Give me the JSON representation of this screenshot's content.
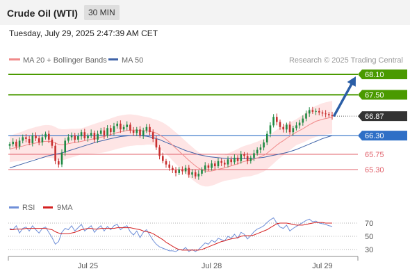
{
  "header": {
    "title": "Crude Oil (WTI)",
    "timeframe": "30 MIN",
    "datetime": "Tuesday, July 29, 2025 2:47:39 AM CET"
  },
  "legend": {
    "ma20": "MA 20 + Bollinger Bands",
    "ma50": "MA 50",
    "credit": "Research © 2025 Trading Central",
    "rsi": "RSI",
    "rsi_ma": "9MA"
  },
  "colors": {
    "resistance": "#4a9a00",
    "support": "#e0606a",
    "pivot": "#2f6fc6",
    "current": "#333333",
    "ma20": "#f08a8a",
    "ma50": "#3f63a8",
    "band": "#fddcdc",
    "bull": "#1f8a44",
    "bear": "#c83030",
    "arrow": "#2b5ea6",
    "rsi": "#6f8fd8",
    "rsi_ma": "#d42020"
  },
  "chart_data": [
    {
      "type": "line",
      "title": "Crude Oil (WTI)",
      "timeframe": "30 MIN",
      "ylim": [
        64.55,
        68.65
      ],
      "x_ticks": [
        "Jul 25",
        "Jul 28",
        "Jul 29"
      ],
      "levels": [
        {
          "name": "resistance-2",
          "value": 68.1,
          "label": "68.10",
          "kind": "resistance"
        },
        {
          "name": "resistance-1",
          "value": 67.5,
          "label": "67.50",
          "kind": "resistance"
        },
        {
          "name": "current-price",
          "value": 66.87,
          "label": "66.87",
          "kind": "current"
        },
        {
          "name": "pivot",
          "value": 66.3,
          "label": "66.30",
          "kind": "pivot"
        },
        {
          "name": "support-1",
          "value": 65.75,
          "label": "65.75",
          "kind": "support"
        },
        {
          "name": "support-2",
          "value": 65.3,
          "label": "65.30",
          "kind": "support"
        }
      ],
      "close": [
        66.05,
        66.12,
        65.98,
        66.15,
        66.25,
        66.2,
        66.08,
        66.3,
        66.22,
        66.1,
        66.25,
        66.35,
        66.18,
        66.0,
        65.55,
        65.45,
        65.8,
        66.15,
        66.25,
        66.3,
        66.18,
        66.28,
        66.4,
        66.22,
        66.3,
        66.38,
        66.18,
        66.35,
        66.45,
        66.3,
        66.52,
        66.4,
        66.58,
        66.65,
        66.48,
        66.55,
        66.62,
        66.45,
        66.38,
        66.48,
        66.3,
        66.45,
        66.55,
        66.4,
        66.2,
        65.95,
        65.7,
        65.55,
        65.45,
        65.35,
        65.28,
        65.2,
        65.3,
        65.25,
        65.35,
        65.15,
        65.22,
        65.1,
        65.18,
        65.3,
        65.42,
        65.35,
        65.48,
        65.4,
        65.55,
        65.5,
        65.45,
        65.6,
        65.52,
        65.65,
        65.55,
        65.75,
        65.7,
        65.55,
        65.65,
        65.78,
        65.88,
        65.95,
        66.1,
        66.35,
        66.6,
        66.85,
        66.7,
        66.55,
        66.48,
        66.62,
        66.4,
        66.52,
        66.6,
        66.68,
        66.8,
        66.95,
        67.05,
        67.0,
        67.02,
        66.98,
        66.95,
        66.93,
        66.9,
        66.87
      ],
      "ma20": [
        65.9,
        65.93,
        65.95,
        65.97,
        65.99,
        66.02,
        66.04,
        66.06,
        66.08,
        66.1,
        66.12,
        66.13,
        66.13,
        66.12,
        66.08,
        66.04,
        66.03,
        66.04,
        66.06,
        66.08,
        66.09,
        66.11,
        66.13,
        66.15,
        66.17,
        66.19,
        66.21,
        66.23,
        66.25,
        66.27,
        66.3,
        66.33,
        66.36,
        66.39,
        66.41,
        66.43,
        66.45,
        66.46,
        66.46,
        66.46,
        66.45,
        66.44,
        66.44,
        66.43,
        66.41,
        66.37,
        66.32,
        66.26,
        66.19,
        66.11,
        66.02,
        65.93,
        65.84,
        65.75,
        65.66,
        65.57,
        65.49,
        65.41,
        65.34,
        65.29,
        65.26,
        65.25,
        65.26,
        65.28,
        65.31,
        65.33,
        65.35,
        65.38,
        65.41,
        65.44,
        65.47,
        65.51,
        65.54,
        65.56,
        65.58,
        65.61,
        65.64,
        65.68,
        65.72,
        65.78,
        65.86,
        65.94,
        66.02,
        66.09,
        66.15,
        66.22,
        66.28,
        66.34,
        66.4,
        66.45,
        66.5,
        66.56,
        66.62,
        66.67,
        66.72,
        66.75,
        66.78,
        66.8,
        66.82,
        66.84
      ],
      "ma50": [
        65.35,
        65.38,
        65.41,
        65.44,
        65.47,
        65.5,
        65.53,
        65.56,
        65.59,
        65.62,
        65.65,
        65.68,
        65.71,
        65.73,
        65.75,
        65.77,
        65.79,
        65.82,
        65.85,
        65.88,
        65.91,
        65.94,
        65.97,
        66.0,
        66.03,
        66.06,
        66.09,
        66.12,
        66.14,
        66.16,
        66.19,
        66.21,
        66.23,
        66.25,
        66.27,
        66.28,
        66.29,
        66.3,
        66.3,
        66.3,
        66.3,
        66.29,
        66.28,
        66.26,
        66.24,
        66.21,
        66.18,
        66.14,
        66.1,
        66.06,
        66.02,
        65.98,
        65.94,
        65.9,
        65.86,
        65.83,
        65.8,
        65.77,
        65.74,
        65.72,
        65.7,
        65.68,
        65.67,
        65.66,
        65.65,
        65.64,
        65.63,
        65.62,
        65.62,
        65.62,
        65.62,
        65.62,
        65.62,
        65.62,
        65.63,
        65.63,
        65.64,
        65.65,
        65.66,
        65.68,
        65.7,
        65.72,
        65.74,
        65.76,
        65.78,
        65.8,
        65.83,
        65.86,
        65.89,
        65.93,
        65.97,
        66.01,
        66.05,
        66.09,
        66.13,
        66.17,
        66.21,
        66.24,
        66.27,
        66.3
      ]
    },
    {
      "type": "line",
      "title": "RSI",
      "ylim": [
        20,
        80
      ],
      "y_ticks": [
        70,
        50,
        30
      ],
      "series": [
        {
          "name": "RSI",
          "values": [
            62,
            60,
            66,
            55,
            62,
            64,
            58,
            66,
            60,
            55,
            62,
            64,
            56,
            48,
            38,
            42,
            56,
            62,
            60,
            66,
            58,
            63,
            68,
            58,
            62,
            66,
            56,
            62,
            66,
            58,
            65,
            60,
            66,
            68,
            60,
            64,
            66,
            57,
            52,
            58,
            48,
            56,
            60,
            52,
            44,
            38,
            34,
            32,
            30,
            28,
            28,
            27,
            30,
            29,
            33,
            27,
            30,
            27,
            30,
            35,
            40,
            38,
            44,
            41,
            47,
            45,
            43,
            50,
            47,
            53,
            47,
            56,
            53,
            46,
            51,
            57,
            61,
            63,
            66,
            71,
            75,
            78,
            70,
            64,
            62,
            67,
            58,
            62,
            65,
            68,
            71,
            74,
            76,
            72,
            73,
            70,
            69,
            68,
            66,
            65
          ]
        },
        {
          "name": "9MA",
          "values": [
            60,
            60,
            61,
            61,
            61,
            62,
            62,
            62,
            62,
            62,
            62,
            62,
            61,
            60,
            57,
            55,
            54,
            54,
            54,
            55,
            56,
            58,
            60,
            61,
            62,
            62,
            61,
            61,
            62,
            62,
            62,
            62,
            62,
            63,
            63,
            63,
            63,
            63,
            62,
            61,
            60,
            58,
            57,
            56,
            54,
            51,
            48,
            45,
            41,
            38,
            35,
            32,
            30,
            29,
            29,
            29,
            29,
            29,
            29,
            30,
            32,
            34,
            36,
            38,
            40,
            42,
            43,
            45,
            46,
            47,
            48,
            50,
            51,
            51,
            51,
            52,
            54,
            56,
            58,
            60,
            63,
            66,
            69,
            70,
            70,
            70,
            69,
            68,
            67,
            67,
            67,
            68,
            69,
            70,
            71,
            71,
            71,
            70,
            70,
            70
          ]
        }
      ]
    }
  ]
}
